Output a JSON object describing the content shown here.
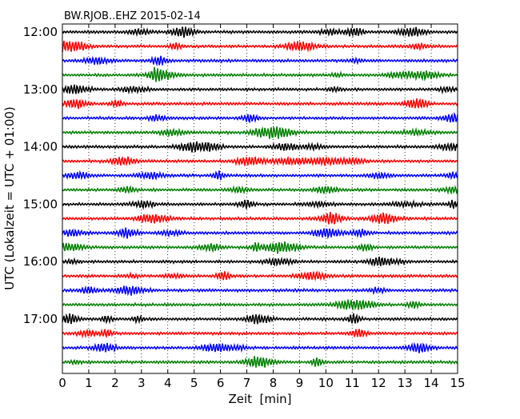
{
  "chart_data": {
    "type": "line",
    "subtype": "dayplot-helicorder",
    "title": "BW.RJOB..EHZ 2015-02-14",
    "xlabel": "Zeit  [min]",
    "ylabel": "UTC (Lokalzeit = UTC + 01:00)",
    "xlim": [
      0,
      15
    ],
    "x_ticks": [
      "0",
      "1",
      "2",
      "3",
      "4",
      "5",
      "6",
      "7",
      "8",
      "9",
      "10",
      "11",
      "12",
      "13",
      "14",
      "15"
    ],
    "y_ticks": [
      "12:00",
      "13:00",
      "14:00",
      "15:00",
      "16:00",
      "17:00"
    ],
    "grid": "vertical dotted lines at each minute",
    "colors": [
      "#000000",
      "#ff0000",
      "#0000ff",
      "#008000"
    ],
    "rows": [
      {
        "start": "12:00",
        "color": "#000000"
      },
      {
        "start": "12:15",
        "color": "#ff0000"
      },
      {
        "start": "12:30",
        "color": "#0000ff"
      },
      {
        "start": "12:45",
        "color": "#008000"
      },
      {
        "start": "13:00",
        "color": "#000000"
      },
      {
        "start": "13:15",
        "color": "#ff0000"
      },
      {
        "start": "13:30",
        "color": "#0000ff"
      },
      {
        "start": "13:45",
        "color": "#008000"
      },
      {
        "start": "14:00",
        "color": "#000000"
      },
      {
        "start": "14:15",
        "color": "#ff0000"
      },
      {
        "start": "14:30",
        "color": "#0000ff"
      },
      {
        "start": "14:45",
        "color": "#008000"
      },
      {
        "start": "15:00",
        "color": "#000000"
      },
      {
        "start": "15:15",
        "color": "#ff0000"
      },
      {
        "start": "15:30",
        "color": "#0000ff"
      },
      {
        "start": "15:45",
        "color": "#008000"
      },
      {
        "start": "16:00",
        "color": "#000000"
      },
      {
        "start": "16:15",
        "color": "#ff0000"
      },
      {
        "start": "16:30",
        "color": "#0000ff"
      },
      {
        "start": "16:45",
        "color": "#008000"
      },
      {
        "start": "17:00",
        "color": "#000000"
      },
      {
        "start": "17:15",
        "color": "#ff0000"
      },
      {
        "start": "17:30",
        "color": "#0000ff"
      },
      {
        "start": "17:45",
        "color": "#008000"
      }
    ]
  }
}
